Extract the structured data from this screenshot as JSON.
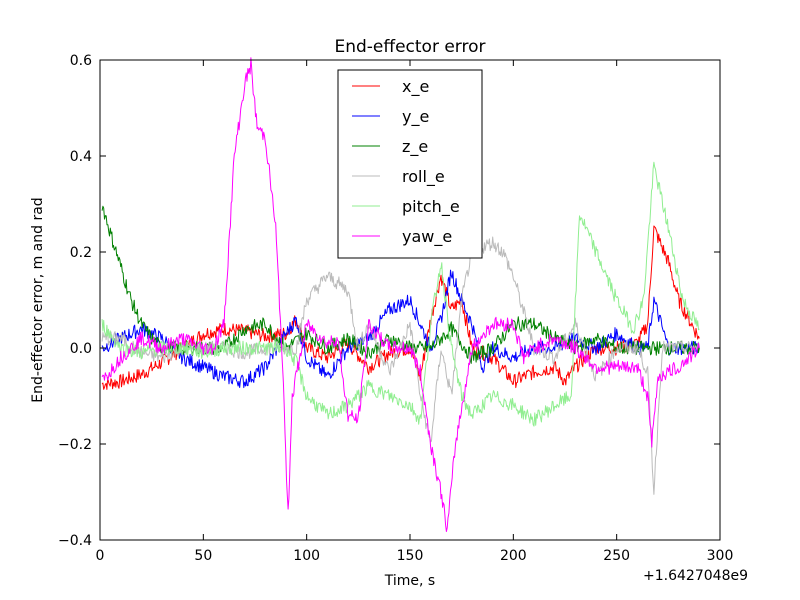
{
  "chart_data": {
    "type": "line",
    "title": "End-effector error",
    "xlabel": "Time, s",
    "ylabel": "End-effector error, m and rad",
    "x_offset_label": "+1.6427048e9",
    "xlim": [
      0,
      300
    ],
    "ylim": [
      -0.4,
      0.6
    ],
    "xticks": [
      "0",
      "50",
      "100",
      "150",
      "200",
      "250",
      "300"
    ],
    "yticks": [
      "−0.4",
      "−0.2",
      "0.0",
      "0.2",
      "0.4",
      "0.6"
    ],
    "grid": false,
    "legend_position": "top-center",
    "series": [
      {
        "name": "x_e",
        "color": "#ff0000",
        "points": [
          [
            1,
            -0.075
          ],
          [
            10,
            -0.07
          ],
          [
            20,
            -0.055
          ],
          [
            30,
            -0.03
          ],
          [
            40,
            0.0
          ],
          [
            50,
            0.03
          ],
          [
            60,
            0.04
          ],
          [
            70,
            0.035
          ],
          [
            80,
            0.025
          ],
          [
            90,
            0.03
          ],
          [
            95,
            0.06
          ],
          [
            100,
            0.0
          ],
          [
            110,
            -0.02
          ],
          [
            120,
            0.01
          ],
          [
            130,
            -0.04
          ],
          [
            140,
            -0.01
          ],
          [
            150,
            0.0
          ],
          [
            155,
            -0.06
          ],
          [
            160,
            0.06
          ],
          [
            165,
            0.15
          ],
          [
            170,
            0.08
          ],
          [
            175,
            0.1
          ],
          [
            180,
            0.0
          ],
          [
            190,
            -0.02
          ],
          [
            200,
            -0.07
          ],
          [
            210,
            -0.05
          ],
          [
            220,
            -0.04
          ],
          [
            225,
            -0.07
          ],
          [
            230,
            -0.04
          ],
          [
            240,
            0.0
          ],
          [
            250,
            0.0
          ],
          [
            260,
            0.01
          ],
          [
            265,
            0.05
          ],
          [
            268,
            0.25
          ],
          [
            275,
            0.18
          ],
          [
            280,
            0.1
          ],
          [
            290,
            0.02
          ]
        ]
      },
      {
        "name": "y_e",
        "color": "#0000ff",
        "points": [
          [
            1,
            0.0
          ],
          [
            10,
            0.02
          ],
          [
            20,
            0.04
          ],
          [
            30,
            0.02
          ],
          [
            40,
            -0.02
          ],
          [
            50,
            -0.04
          ],
          [
            60,
            -0.06
          ],
          [
            70,
            -0.07
          ],
          [
            80,
            -0.04
          ],
          [
            90,
            0.03
          ],
          [
            95,
            0.06
          ],
          [
            100,
            -0.02
          ],
          [
            110,
            -0.06
          ],
          [
            120,
            0.0
          ],
          [
            130,
            0.02
          ],
          [
            140,
            0.08
          ],
          [
            150,
            0.1
          ],
          [
            155,
            0.05
          ],
          [
            160,
            0.0
          ],
          [
            165,
            0.06
          ],
          [
            170,
            0.16
          ],
          [
            175,
            0.1
          ],
          [
            180,
            0.05
          ],
          [
            185,
            -0.04
          ],
          [
            190,
            0.0
          ],
          [
            200,
            -0.02
          ],
          [
            210,
            0.0
          ],
          [
            220,
            0.0
          ],
          [
            230,
            0.02
          ],
          [
            240,
            0.0
          ],
          [
            250,
            0.03
          ],
          [
            260,
            0.0
          ],
          [
            265,
            0.0
          ],
          [
            268,
            0.1
          ],
          [
            275,
            0.0
          ],
          [
            290,
            0.0
          ]
        ]
      },
      {
        "name": "z_e",
        "color": "#008000",
        "points": [
          [
            1,
            0.3
          ],
          [
            5,
            0.24
          ],
          [
            10,
            0.17
          ],
          [
            15,
            0.1
          ],
          [
            20,
            0.05
          ],
          [
            25,
            0.02
          ],
          [
            30,
            0.0
          ],
          [
            40,
            0.0
          ],
          [
            60,
            0.0
          ],
          [
            70,
            0.04
          ],
          [
            80,
            0.05
          ],
          [
            90,
            0.0
          ],
          [
            100,
            0.03
          ],
          [
            110,
            0.0
          ],
          [
            120,
            0.02
          ],
          [
            130,
            -0.01
          ],
          [
            140,
            0.02
          ],
          [
            150,
            0.0
          ],
          [
            160,
            0.0
          ],
          [
            170,
            0.04
          ],
          [
            180,
            -0.02
          ],
          [
            190,
            0.0
          ],
          [
            200,
            0.05
          ],
          [
            210,
            0.05
          ],
          [
            220,
            0.02
          ],
          [
            230,
            0.0
          ],
          [
            240,
            0.02
          ],
          [
            250,
            0.0
          ],
          [
            260,
            0.0
          ],
          [
            268,
            0.0
          ],
          [
            280,
            0.0
          ],
          [
            290,
            0.0
          ]
        ]
      },
      {
        "name": "roll_e",
        "color": "#bbbbbb",
        "points": [
          [
            1,
            0.02
          ],
          [
            10,
            0.02
          ],
          [
            20,
            -0.01
          ],
          [
            30,
            -0.02
          ],
          [
            40,
            0.0
          ],
          [
            50,
            0.0
          ],
          [
            60,
            0.0
          ],
          [
            70,
            -0.01
          ],
          [
            80,
            0.0
          ],
          [
            90,
            0.0
          ],
          [
            95,
            0.0
          ],
          [
            100,
            0.1
          ],
          [
            110,
            0.15
          ],
          [
            120,
            0.12
          ],
          [
            125,
            0.0
          ],
          [
            130,
            0.05
          ],
          [
            140,
            -0.05
          ],
          [
            150,
            0.05
          ],
          [
            155,
            -0.1
          ],
          [
            160,
            -0.2
          ],
          [
            165,
            0.0
          ],
          [
            170,
            -0.1
          ],
          [
            175,
            0.1
          ],
          [
            180,
            0.2
          ],
          [
            190,
            0.22
          ],
          [
            195,
            0.2
          ],
          [
            200,
            0.15
          ],
          [
            210,
            0.0
          ],
          [
            220,
            -0.02
          ],
          [
            230,
            0.05
          ],
          [
            240,
            -0.06
          ],
          [
            250,
            0.0
          ],
          [
            260,
            0.0
          ],
          [
            265,
            -0.05
          ],
          [
            268,
            -0.3
          ],
          [
            272,
            0.0
          ],
          [
            280,
            0.0
          ],
          [
            290,
            0.0
          ]
        ]
      },
      {
        "name": "pitch_e",
        "color": "#90ee90",
        "points": [
          [
            1,
            0.05
          ],
          [
            10,
            0.0
          ],
          [
            20,
            -0.01
          ],
          [
            30,
            0.0
          ],
          [
            40,
            0.0
          ],
          [
            50,
            -0.01
          ],
          [
            60,
            0.0
          ],
          [
            70,
            0.0
          ],
          [
            80,
            0.0
          ],
          [
            90,
            0.0
          ],
          [
            95,
            -0.03
          ],
          [
            100,
            -0.1
          ],
          [
            110,
            -0.14
          ],
          [
            120,
            -0.12
          ],
          [
            130,
            -0.08
          ],
          [
            140,
            -0.1
          ],
          [
            150,
            -0.12
          ],
          [
            155,
            -0.15
          ],
          [
            160,
            0.05
          ],
          [
            165,
            0.18
          ],
          [
            170,
            0.0
          ],
          [
            175,
            -0.1
          ],
          [
            180,
            -0.14
          ],
          [
            190,
            -0.1
          ],
          [
            200,
            -0.12
          ],
          [
            210,
            -0.15
          ],
          [
            220,
            -0.12
          ],
          [
            228,
            -0.1
          ],
          [
            232,
            0.28
          ],
          [
            240,
            0.2
          ],
          [
            250,
            0.1
          ],
          [
            258,
            0.04
          ],
          [
            263,
            0.1
          ],
          [
            268,
            0.38
          ],
          [
            275,
            0.25
          ],
          [
            282,
            0.1
          ],
          [
            290,
            0.04
          ]
        ]
      },
      {
        "name": "yaw_e",
        "color": "#ff00ff",
        "points": [
          [
            1,
            -0.07
          ],
          [
            10,
            -0.02
          ],
          [
            20,
            0.02
          ],
          [
            30,
            0.0
          ],
          [
            40,
            0.02
          ],
          [
            50,
            0.0
          ],
          [
            55,
            0.0
          ],
          [
            60,
            0.05
          ],
          [
            65,
            0.4
          ],
          [
            70,
            0.55
          ],
          [
            73,
            0.59
          ],
          [
            76,
            0.46
          ],
          [
            80,
            0.44
          ],
          [
            85,
            0.25
          ],
          [
            88,
            0.0
          ],
          [
            91,
            -0.35
          ],
          [
            93,
            -0.1
          ],
          [
            100,
            0.05
          ],
          [
            110,
            0.01
          ],
          [
            115,
            0.02
          ],
          [
            120,
            -0.14
          ],
          [
            125,
            -0.15
          ],
          [
            130,
            0.05
          ],
          [
            140,
            0.0
          ],
          [
            150,
            0.0
          ],
          [
            155,
            -0.05
          ],
          [
            160,
            -0.2
          ],
          [
            165,
            -0.3
          ],
          [
            168,
            -0.38
          ],
          [
            172,
            -0.2
          ],
          [
            180,
            0.0
          ],
          [
            190,
            0.05
          ],
          [
            200,
            0.05
          ],
          [
            205,
            -0.02
          ],
          [
            210,
            0.0
          ],
          [
            220,
            0.02
          ],
          [
            230,
            0.0
          ],
          [
            240,
            -0.04
          ],
          [
            250,
            -0.04
          ],
          [
            260,
            -0.04
          ],
          [
            265,
            -0.1
          ],
          [
            267,
            -0.2
          ],
          [
            270,
            -0.06
          ],
          [
            280,
            -0.04
          ],
          [
            290,
            0.0
          ]
        ]
      }
    ]
  }
}
